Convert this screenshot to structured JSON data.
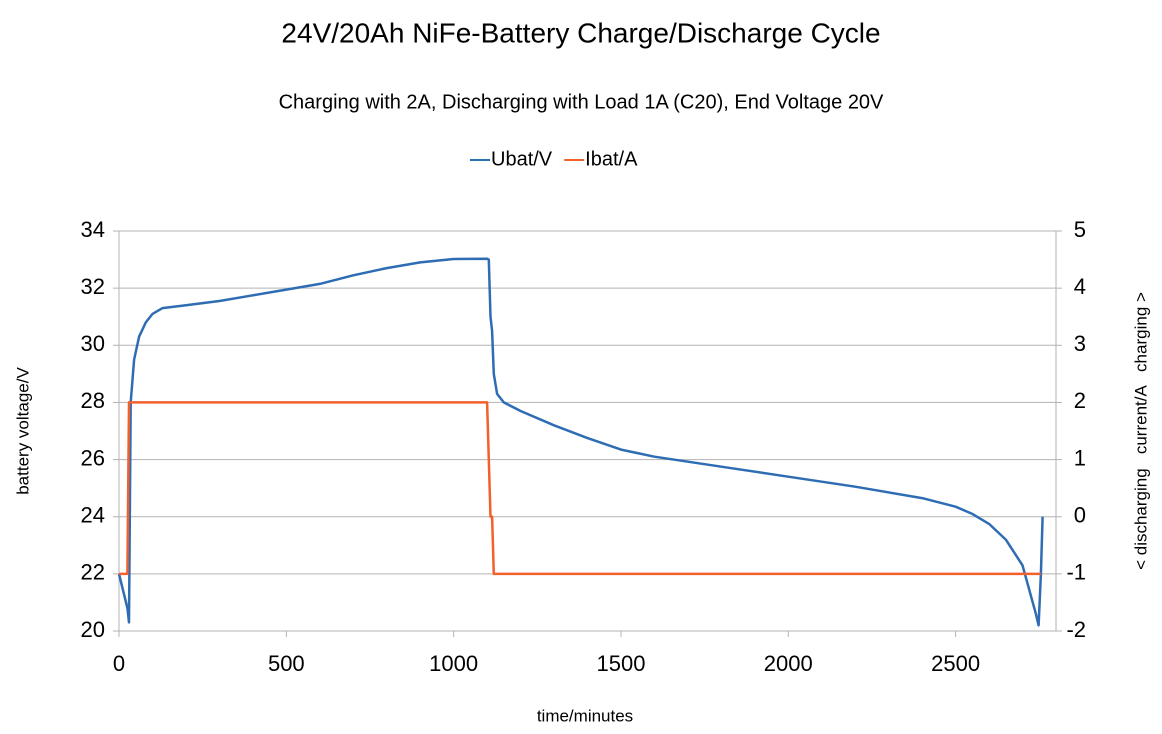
{
  "chart_data": {
    "type": "line",
    "title": "24V/20Ah  NiFe-Battery  Charge/Discharge  Cycle",
    "subtitle": "Charging with 2A, Discharging with Load 1A (C20), End Voltage 20V",
    "x_label": "time/minutes",
    "y_label": "battery voltage/V",
    "y2_label": "< discharging   current/A   charging >",
    "xlim": [
      0,
      2800
    ],
    "xticks": [
      0,
      500,
      1000,
      1500,
      2000,
      2500
    ],
    "ylim": [
      20,
      34
    ],
    "yticks": [
      20,
      22,
      24,
      26,
      28,
      30,
      32,
      34
    ],
    "y2lim": [
      -2,
      5
    ],
    "y2ticks": [
      -2,
      -1,
      0,
      1,
      2,
      3,
      4,
      5
    ],
    "grid": true,
    "legend": "top",
    "series": [
      {
        "name": "Ubat/V",
        "color": "#2e6db4",
        "axis": "y",
        "x": [
          0,
          25,
          30,
          35,
          45,
          60,
          80,
          100,
          130,
          200,
          300,
          400,
          500,
          600,
          700,
          800,
          900,
          1000,
          1100,
          1105,
          1110,
          1115,
          1120,
          1130,
          1150,
          1200,
          1300,
          1400,
          1500,
          1600,
          1800,
          2000,
          2200,
          2400,
          2500,
          2550,
          2600,
          2650,
          2700,
          2740,
          2748,
          2755,
          2760
        ],
        "values": [
          22.0,
          20.8,
          20.3,
          28.0,
          29.5,
          30.3,
          30.8,
          31.1,
          31.3,
          31.4,
          31.55,
          31.75,
          31.95,
          32.15,
          32.45,
          32.7,
          32.9,
          33.02,
          33.03,
          33.0,
          31.0,
          30.5,
          29.0,
          28.3,
          28.0,
          27.7,
          27.2,
          26.75,
          26.35,
          26.1,
          25.75,
          25.4,
          25.05,
          24.65,
          24.35,
          24.1,
          23.75,
          23.2,
          22.3,
          20.6,
          20.2,
          22.0,
          24.0
        ]
      },
      {
        "name": "Ibat/A",
        "color": "#f2602b",
        "axis": "y2",
        "x": [
          0,
          25,
          30,
          1100,
          1110,
          1115,
          1120,
          2755
        ],
        "values": [
          -1,
          -1,
          2,
          2,
          0,
          0,
          -1,
          -1
        ]
      }
    ]
  }
}
